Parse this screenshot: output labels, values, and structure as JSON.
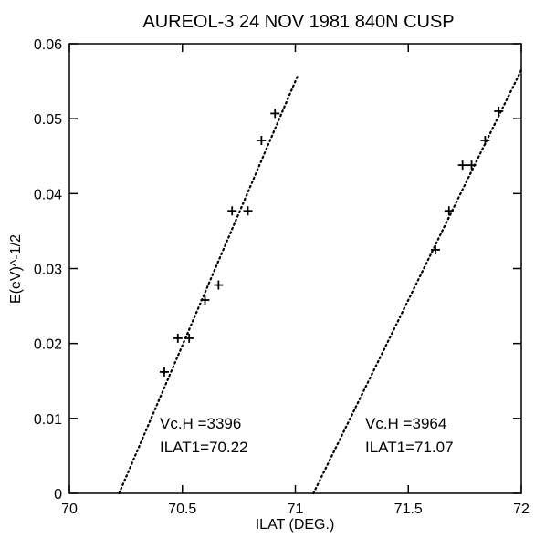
{
  "chart_data": {
    "type": "scatter",
    "title": "AUREOL-3  24 NOV 1981  840N CUSP",
    "xlabel": "ILAT (DEG.)",
    "ylabel": "E(eV)^-1/2",
    "xlim": [
      70,
      72
    ],
    "ylim": [
      0,
      0.06
    ],
    "xticks": [
      70,
      70.5,
      71,
      71.5,
      72
    ],
    "xtick_labels": [
      "70",
      "70.5",
      "71",
      "71.5",
      "72"
    ],
    "yticks": [
      0,
      0.01,
      0.02,
      0.03,
      0.04,
      0.05,
      0.06
    ],
    "ytick_labels": [
      "0",
      "0.01",
      "0.02",
      "0.03",
      "0.04",
      "0.05",
      "0.06"
    ],
    "grid": false,
    "series": [
      {
        "points": [
          [
            70.42,
            0.0162
          ],
          [
            70.48,
            0.0207
          ],
          [
            70.53,
            0.0207
          ],
          [
            70.6,
            0.0258
          ],
          [
            70.66,
            0.0278
          ],
          [
            70.72,
            0.0377
          ],
          [
            70.79,
            0.0377
          ],
          [
            70.85,
            0.0471
          ],
          [
            70.91,
            0.0507
          ]
        ],
        "fit_line": {
          "x": [
            70.22,
            71.01
          ],
          "y": [
            0,
            0.0557
          ]
        },
        "annotation": [
          "Vc.H =3396",
          "ILAT1=70.22"
        ]
      },
      {
        "points": [
          [
            71.62,
            0.0325
          ],
          [
            71.68,
            0.0377
          ],
          [
            71.74,
            0.0438
          ],
          [
            71.78,
            0.0438
          ],
          [
            71.84,
            0.0471
          ],
          [
            71.9,
            0.051
          ]
        ],
        "fit_line": {
          "x": [
            71.08,
            72.0
          ],
          "y": [
            0,
            0.0565
          ]
        },
        "annotation": [
          "Vc.H =3964",
          "ILAT1=71.07"
        ]
      }
    ]
  }
}
